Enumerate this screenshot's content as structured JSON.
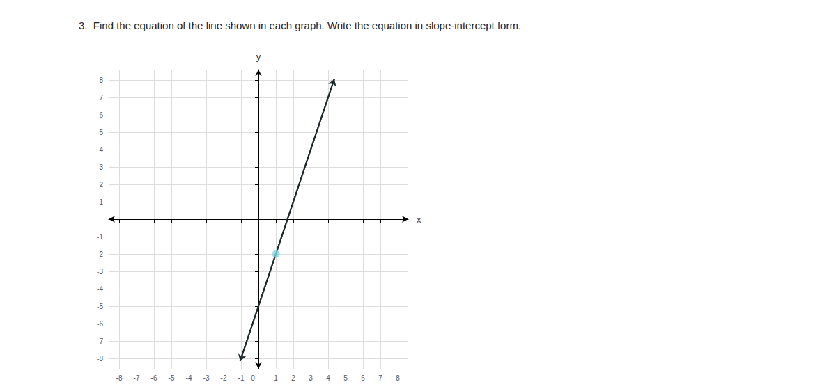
{
  "chart_data": {
    "type": "line",
    "title": "3.  Find the equation of the line shown in each graph. Write the equation in slope-intercept form.",
    "x_label": "x",
    "y_label": "y",
    "series": [
      {
        "type": "line",
        "x": [
          -1.05,
          4.35
        ],
        "values": [
          -8.15,
          8.05
        ],
        "color": "#1a2a2a"
      },
      {
        "type": "scatter",
        "x": [
          1
        ],
        "values": [
          -2
        ],
        "color": "#7fd7e8"
      }
    ],
    "xlim": [
      -8.6,
      8.6
    ],
    "ylim": [
      -8.6,
      8.6
    ],
    "xticks": [
      -8,
      -7,
      -6,
      -5,
      -4,
      -3,
      -2,
      -1,
      0,
      1,
      2,
      3,
      4,
      5,
      6,
      7,
      8
    ],
    "yticks": [
      -8,
      -7,
      -6,
      -5,
      -4,
      -3,
      -2,
      -1,
      1,
      2,
      3,
      4,
      5,
      6,
      7,
      8
    ],
    "grid": true
  }
}
